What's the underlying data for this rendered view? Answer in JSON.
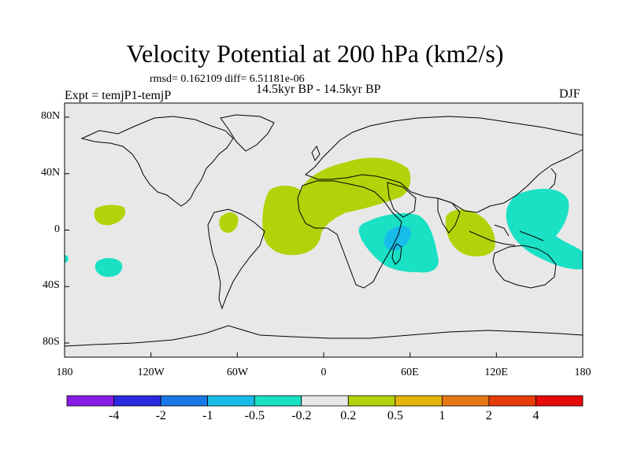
{
  "title": "Velocity Potential at 200 hPa (km2/s)",
  "stats": "rmsd= 0.162109 diff= 6.51181e-06",
  "experiment": "Expt = temjP1-temjP",
  "period": "14.5kyr BP - 14.5kyr BP",
  "season": "DJF",
  "axes": {
    "lon_labels": [
      "180",
      "120W",
      "60W",
      "0",
      "60E",
      "120E",
      "180"
    ],
    "lat_labels": [
      "80N",
      "40N",
      "0",
      "40S",
      "80S"
    ]
  },
  "colorbar": {
    "labels": [
      "-4",
      "-2",
      "-1",
      "-0.5",
      "-0.2",
      "0.2",
      "0.5",
      "1",
      "2",
      "4"
    ],
    "colors": [
      "#8a1ae6",
      "#2a2ae0",
      "#1a78e6",
      "#18bce8",
      "#1ae0c4",
      "#e8e8e8",
      "#b4d20a",
      "#e6b40a",
      "#e67814",
      "#e63c0a",
      "#e60a0a"
    ]
  },
  "colors": {
    "ocean_background": "#e8e8e8",
    "positive_light": "#b4d20a",
    "negative_light": "#1ae0c4",
    "negative_medium": "#18bce8"
  }
}
